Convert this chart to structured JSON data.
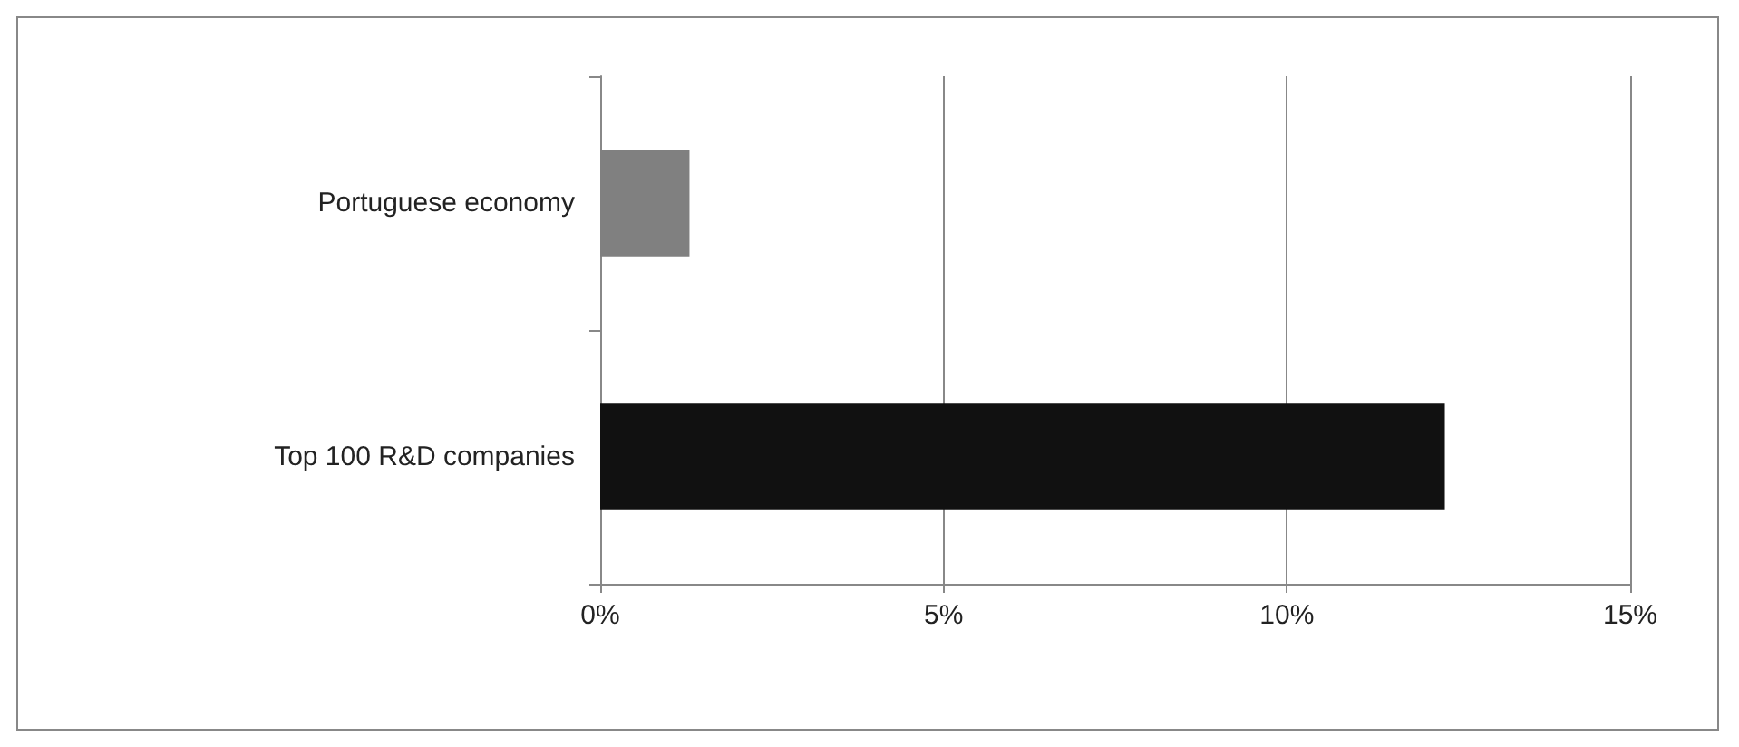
{
  "chart_data": {
    "type": "bar",
    "orientation": "horizontal",
    "categories": [
      "Portuguese economy",
      "Top 100 R&D companies"
    ],
    "values": [
      1.3,
      12.3
    ],
    "colors": [
      "#808080",
      "#111111"
    ],
    "xlim": [
      0,
      15
    ],
    "xticks": [
      {
        "value": 0,
        "label": "0%"
      },
      {
        "value": 5,
        "label": "5%"
      },
      {
        "value": 10,
        "label": "10%"
      },
      {
        "value": 15,
        "label": "15%"
      }
    ],
    "grid": "x"
  }
}
